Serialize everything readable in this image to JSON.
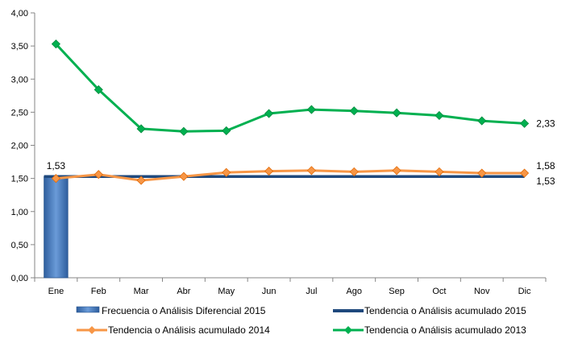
{
  "chart_data": {
    "type": "line",
    "categories": [
      "Ene",
      "Feb",
      "Mar",
      "Abr",
      "May",
      "Jun",
      "Jul",
      "Ago",
      "Sep",
      "Oct",
      "Nov",
      "Dic"
    ],
    "ylim": [
      0,
      4
    ],
    "yticks": [
      "0,00",
      "0,50",
      "1,00",
      "1,50",
      "2,00",
      "2,50",
      "3,00",
      "3,50",
      "4,00"
    ],
    "grid": false,
    "legend_position": "bottom",
    "series": [
      {
        "name": "Frecuencia o Análisis Diferencial 2015",
        "kind": "bar",
        "color": "#4F81BD",
        "values": [
          1.53,
          null,
          null,
          null,
          null,
          null,
          null,
          null,
          null,
          null,
          null,
          null
        ]
      },
      {
        "name": "Tendencia o Análisis acumulado 2015",
        "kind": "line",
        "color": "#1F497D",
        "marker": "none",
        "values": [
          1.53,
          1.53,
          1.53,
          1.53,
          1.53,
          1.53,
          1.53,
          1.53,
          1.53,
          1.53,
          1.53,
          1.53
        ]
      },
      {
        "name": "Tendencia o Análisis acumulado 2014",
        "kind": "line",
        "color": "#F79646",
        "marker": "diamond",
        "values": [
          1.5,
          1.56,
          1.47,
          1.53,
          1.59,
          1.61,
          1.62,
          1.6,
          1.62,
          1.6,
          1.58,
          1.58
        ]
      },
      {
        "name": "Tendencia o Análisis acumulado 2013",
        "kind": "line",
        "color": "#00B050",
        "marker": "diamond",
        "values": [
          3.53,
          2.84,
          2.25,
          2.21,
          2.22,
          2.48,
          2.54,
          2.52,
          2.49,
          2.45,
          2.37,
          2.33
        ]
      }
    ],
    "annotations": [
      {
        "text": "1,53",
        "series": 0,
        "index": 0
      },
      {
        "text": "2,33",
        "series": 3,
        "index": 11
      },
      {
        "text": "1,58",
        "series": 2,
        "index": 11
      },
      {
        "text": "1,53",
        "series": 1,
        "index": 11
      }
    ]
  }
}
